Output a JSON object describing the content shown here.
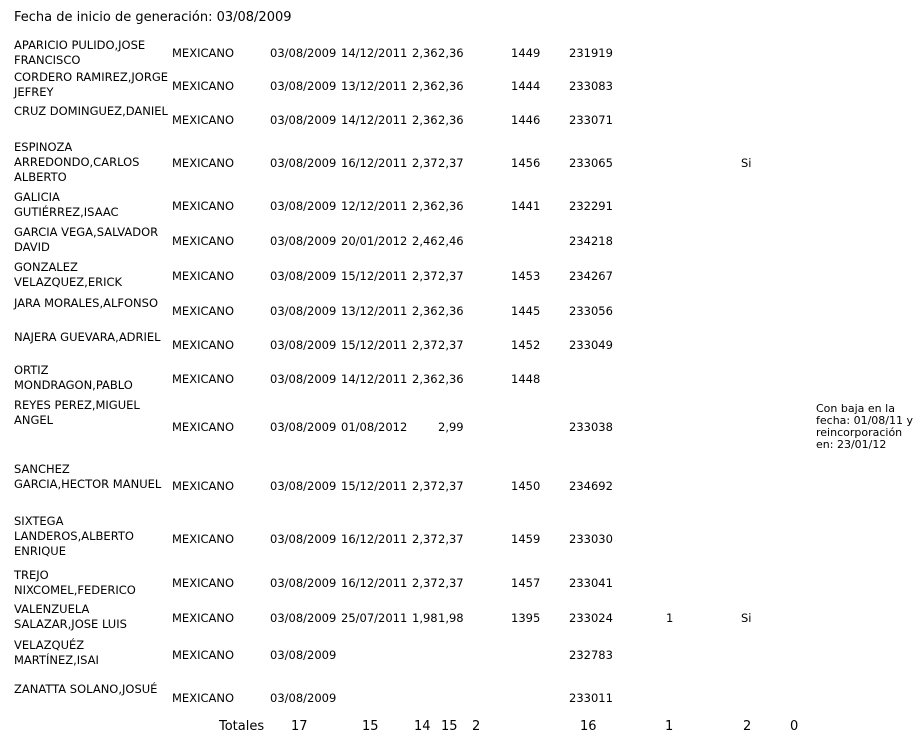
{
  "header": {
    "text": "Fecha de inicio de generación: 03/08/2009"
  },
  "rows": [
    {
      "name": "APARICIO PULIDO,JOSE FRANCISCO",
      "nat": "MEXICANO",
      "start": "03/08/2009",
      "end": "14/12/2011",
      "v1": "2,36",
      "v2": "2,36",
      "code": "1449",
      "num": "231919",
      "one": "",
      "si": "",
      "note": ""
    },
    {
      "name": "CORDERO RAMIREZ,JORGE JEFREY",
      "nat": "MEXICANO",
      "start": "03/08/2009",
      "end": "13/12/2011",
      "v1": "2,36",
      "v2": "2,36",
      "code": "1444",
      "num": "233083",
      "one": "",
      "si": "",
      "note": ""
    },
    {
      "name": "CRUZ DOMINGUEZ,DANIEL",
      "nat": "MEXICANO",
      "start": "03/08/2009",
      "end": "14/12/2011",
      "v1": "2,36",
      "v2": "2,36",
      "code": "1446",
      "num": "233071",
      "one": "",
      "si": "",
      "note": ""
    },
    {
      "name": "ESPINOZA ARREDONDO,CARLOS ALBERTO",
      "nat": "MEXICANO",
      "start": "03/08/2009",
      "end": "16/12/2011",
      "v1": "2,37",
      "v2": "2,37",
      "code": "1456",
      "num": "233065",
      "one": "",
      "si": "Si",
      "note": ""
    },
    {
      "name": "GALICIA GUTIÉRREZ,ISAAC",
      "nat": "MEXICANO",
      "start": "03/08/2009",
      "end": "12/12/2011",
      "v1": "2,36",
      "v2": "2,36",
      "code": "1441",
      "num": "232291",
      "one": "",
      "si": "",
      "note": ""
    },
    {
      "name": "GARCIA VEGA,SALVADOR DAVID",
      "nat": "MEXICANO",
      "start": "03/08/2009",
      "end": "20/01/2012",
      "v1": "2,46",
      "v2": "2,46",
      "code": "",
      "num": "234218",
      "one": "",
      "si": "",
      "note": ""
    },
    {
      "name": "GONZALEZ VELAZQUEZ,ERICK",
      "nat": "MEXICANO",
      "start": "03/08/2009",
      "end": "15/12/2011",
      "v1": "2,37",
      "v2": "2,37",
      "code": "1453",
      "num": "234267",
      "one": "",
      "si": "",
      "note": ""
    },
    {
      "name": "JARA MORALES,ALFONSO",
      "nat": "MEXICANO",
      "start": "03/08/2009",
      "end": "13/12/2011",
      "v1": "2,36",
      "v2": "2,36",
      "code": "1445",
      "num": "233056",
      "one": "",
      "si": "",
      "note": ""
    },
    {
      "name": "NAJERA GUEVARA,ADRIEL",
      "nat": "MEXICANO",
      "start": "03/08/2009",
      "end": "15/12/2011",
      "v1": "2,37",
      "v2": "2,37",
      "code": "1452",
      "num": "233049",
      "one": "",
      "si": "",
      "note": ""
    },
    {
      "name": "ORTIZ MONDRAGON,PABLO",
      "nat": "MEXICANO",
      "start": "03/08/2009",
      "end": "14/12/2011",
      "v1": "2,36",
      "v2": "2,36",
      "code": "1448",
      "num": "",
      "one": "",
      "si": "",
      "note": ""
    },
    {
      "name": "REYES PEREZ,MIGUEL ANGEL",
      "nat": "MEXICANO",
      "start": "03/08/2009",
      "end": "01/08/2012",
      "v1": "",
      "v2": "2,99",
      "code": "",
      "num": "233038",
      "one": "",
      "si": "",
      "note": "Con baja en la fecha: 01/08/11 y reincorporación en: 23/01/12"
    },
    {
      "name": "SANCHEZ GARCIA,HECTOR MANUEL",
      "nat": "MEXICANO",
      "start": "03/08/2009",
      "end": "15/12/2011",
      "v1": "2,37",
      "v2": "2,37",
      "code": "1450",
      "num": "234692",
      "one": "",
      "si": "",
      "note": ""
    },
    {
      "name": "SIXTEGA LANDEROS,ALBERTO ENRIQUE",
      "nat": "MEXICANO",
      "start": "03/08/2009",
      "end": "16/12/2011",
      "v1": "2,37",
      "v2": "2,37",
      "code": "1459",
      "num": "233030",
      "one": "",
      "si": "",
      "note": ""
    },
    {
      "name": "TREJO NIXCOMEL,FEDERICO",
      "nat": "MEXICANO",
      "start": "03/08/2009",
      "end": "16/12/2011",
      "v1": "2,37",
      "v2": "2,37",
      "code": "1457",
      "num": "233041",
      "one": "",
      "si": "",
      "note": ""
    },
    {
      "name": "VALENZUELA SALAZAR,JOSE LUIS",
      "nat": "MEXICANO",
      "start": "03/08/2009",
      "end": "25/07/2011",
      "v1": "1,98",
      "v2": "1,98",
      "code": "1395",
      "num": "233024",
      "one": "1",
      "si": "Si",
      "note": ""
    },
    {
      "name": "VELAZQUÉZ MARTÍNEZ,ISAI",
      "nat": "MEXICANO",
      "start": "03/08/2009",
      "end": "",
      "v1": "",
      "v2": "",
      "code": "",
      "num": "232783",
      "one": "",
      "si": "",
      "note": ""
    },
    {
      "name": "ZANATTA SOLANO,JOSUÉ",
      "nat": "MEXICANO",
      "start": "03/08/2009",
      "end": "",
      "v1": "",
      "v2": "",
      "code": "",
      "num": "233011",
      "one": "",
      "si": "",
      "note": ""
    }
  ],
  "totals": {
    "label": "Totales",
    "values": [
      "17",
      "15",
      "14",
      "15",
      "2",
      "16",
      "1",
      "2",
      "0"
    ]
  }
}
